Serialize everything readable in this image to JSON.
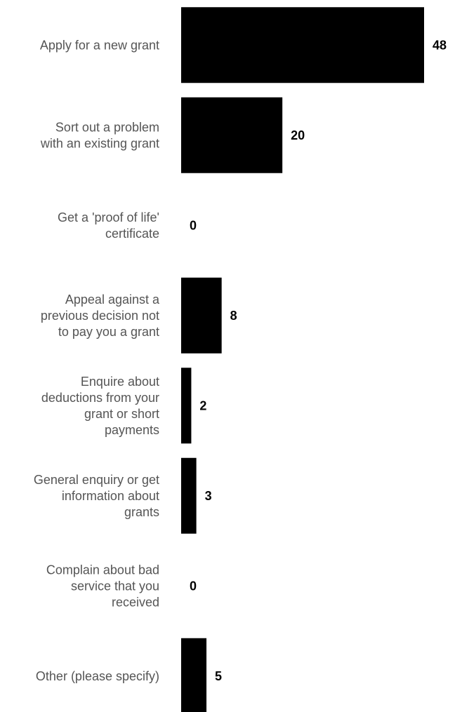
{
  "chart_data": {
    "type": "bar",
    "orientation": "horizontal",
    "categories": [
      "Apply for a new grant",
      "Sort out a problem with an existing grant",
      "Get a 'proof of life' certificate",
      "Appeal against a previous decision not to pay you a grant",
      "Enquire about deductions from your grant or short payments",
      "General enquiry or get information about grants",
      "Complain about bad service that you received",
      "Other (please specify)"
    ],
    "category_label_lines": [
      [
        "Apply for a new grant"
      ],
      [
        "Sort out a problem",
        "with an existing grant"
      ],
      [
        "Get a 'proof of life'",
        "certificate"
      ],
      [
        "Appeal against a",
        "previous decision not",
        "to pay you a grant"
      ],
      [
        "Enquire about",
        "deductions from your",
        "grant or short",
        "payments"
      ],
      [
        "General enquiry or get",
        "information about",
        "grants"
      ],
      [
        "Complain about bad",
        "service that you",
        "received"
      ],
      [
        "Other (please specify)"
      ]
    ],
    "values": [
      48,
      20,
      0,
      8,
      2,
      3,
      0,
      5
    ],
    "value_labels": [
      "48",
      "20",
      "0",
      "8",
      "2",
      "3",
      "0",
      "5"
    ],
    "xlim": [
      0,
      48
    ],
    "grid": false,
    "legend": false,
    "title": "",
    "xlabel": "",
    "ylabel": "",
    "bar_color": "#000000",
    "label_color": "#555555",
    "value_label_color": "#000000"
  }
}
